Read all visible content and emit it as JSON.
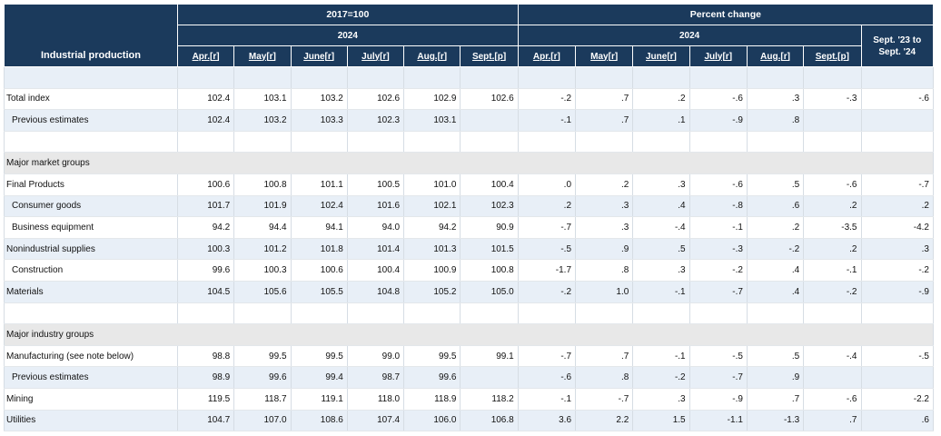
{
  "header": {
    "stub_label": "Industrial production",
    "index_title": "2017=100",
    "pct_title": "Percent change",
    "year_index": "2024",
    "year_pct": "2024",
    "change_col": "Sept. '23 to Sept. '24",
    "months": [
      "Apr.[r]",
      "May[r]",
      "June[r]",
      "July[r]",
      "Aug.[r]",
      "Sept.[p]"
    ]
  },
  "rows": [
    {
      "label": "Total index",
      "index": [
        "102.4",
        "103.1",
        "103.2",
        "102.6",
        "102.9",
        "102.6"
      ],
      "pct": [
        "-.2",
        ".7",
        ".2",
        "-.6",
        ".3",
        "-.3"
      ],
      "yoy": "-.6"
    },
    {
      "label": "Previous estimates",
      "index": [
        "102.4",
        "103.2",
        "103.3",
        "102.3",
        "103.1",
        ""
      ],
      "pct": [
        "-.1",
        ".7",
        ".1",
        "-.9",
        ".8",
        ""
      ],
      "yoy": ""
    },
    {
      "section": "Major market groups"
    },
    {
      "label": "Final Products",
      "index": [
        "100.6",
        "100.8",
        "101.1",
        "100.5",
        "101.0",
        "100.4"
      ],
      "pct": [
        ".0",
        ".2",
        ".3",
        "-.6",
        ".5",
        "-.6"
      ],
      "yoy": "-.7"
    },
    {
      "label": "Consumer goods",
      "index": [
        "101.7",
        "101.9",
        "102.4",
        "101.6",
        "102.1",
        "102.3"
      ],
      "pct": [
        ".2",
        ".3",
        ".4",
        "-.8",
        ".6",
        ".2"
      ],
      "yoy": ".2"
    },
    {
      "label": "Business equipment",
      "index": [
        "94.2",
        "94.4",
        "94.1",
        "94.0",
        "94.2",
        "90.9"
      ],
      "pct": [
        "-.7",
        ".3",
        "-.4",
        "-.1",
        ".2",
        "-3.5"
      ],
      "yoy": "-4.2"
    },
    {
      "label": "Nonindustrial supplies",
      "index": [
        "100.3",
        "101.2",
        "101.8",
        "101.4",
        "101.3",
        "101.5"
      ],
      "pct": [
        "-.5",
        ".9",
        ".5",
        "-.3",
        "-.2",
        ".2"
      ],
      "yoy": ".3"
    },
    {
      "label": "Construction",
      "index": [
        "99.6",
        "100.3",
        "100.6",
        "100.4",
        "100.9",
        "100.8"
      ],
      "pct": [
        "-1.7",
        ".8",
        ".3",
        "-.2",
        ".4",
        "-.1"
      ],
      "yoy": "-.2"
    },
    {
      "label": "Materials",
      "index": [
        "104.5",
        "105.6",
        "105.5",
        "104.8",
        "105.2",
        "105.0"
      ],
      "pct": [
        "-.2",
        "1.0",
        "-.1",
        "-.7",
        ".4",
        "-.2"
      ],
      "yoy": "-.9"
    },
    {
      "section": "Major industry groups"
    },
    {
      "label": "Manufacturing (see note below)",
      "index": [
        "98.8",
        "99.5",
        "99.5",
        "99.0",
        "99.5",
        "99.1"
      ],
      "pct": [
        "-.7",
        ".7",
        "-.1",
        "-.5",
        ".5",
        "-.4"
      ],
      "yoy": "-.5"
    },
    {
      "label": "Previous estimates",
      "index": [
        "98.9",
        "99.6",
        "99.4",
        "98.7",
        "99.6",
        ""
      ],
      "pct": [
        "-.6",
        ".8",
        "-.2",
        "-.7",
        ".9",
        ""
      ],
      "yoy": ""
    },
    {
      "label": "Mining",
      "index": [
        "119.5",
        "118.7",
        "119.1",
        "118.0",
        "118.9",
        "118.2"
      ],
      "pct": [
        "-.1",
        "-.7",
        ".3",
        "-.9",
        ".7",
        "-.6"
      ],
      "yoy": "-2.2"
    },
    {
      "label": "Utilities",
      "index": [
        "104.7",
        "107.0",
        "108.6",
        "107.4",
        "106.0",
        "106.8"
      ],
      "pct": [
        "3.6",
        "2.2",
        "1.5",
        "-1.1",
        "-1.3",
        ".7"
      ],
      "yoy": ".6"
    }
  ]
}
